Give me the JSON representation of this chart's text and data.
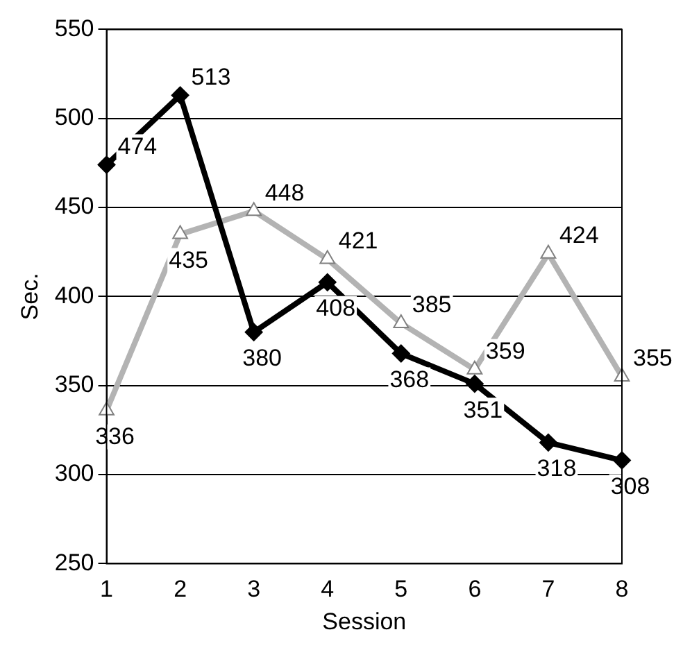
{
  "chart_data": {
    "type": "line",
    "xlabel": "Session",
    "ylabel": "Sec.",
    "categories": [
      "1",
      "2",
      "3",
      "4",
      "5",
      "6",
      "7",
      "8"
    ],
    "series": [
      {
        "color": "#000000",
        "marker": "diamond",
        "values": [
          474,
          513,
          380,
          408,
          368,
          351,
          318,
          308
        ]
      },
      {
        "color": "#b3b3b3",
        "marker": "triangle",
        "values": [
          336,
          435,
          448,
          421,
          385,
          359,
          424,
          355
        ]
      }
    ],
    "ylim": [
      250,
      550
    ],
    "yticks": [
      250,
      300,
      350,
      400,
      450,
      500,
      550
    ],
    "grid": "y",
    "legend": false,
    "data_labels": true
  }
}
